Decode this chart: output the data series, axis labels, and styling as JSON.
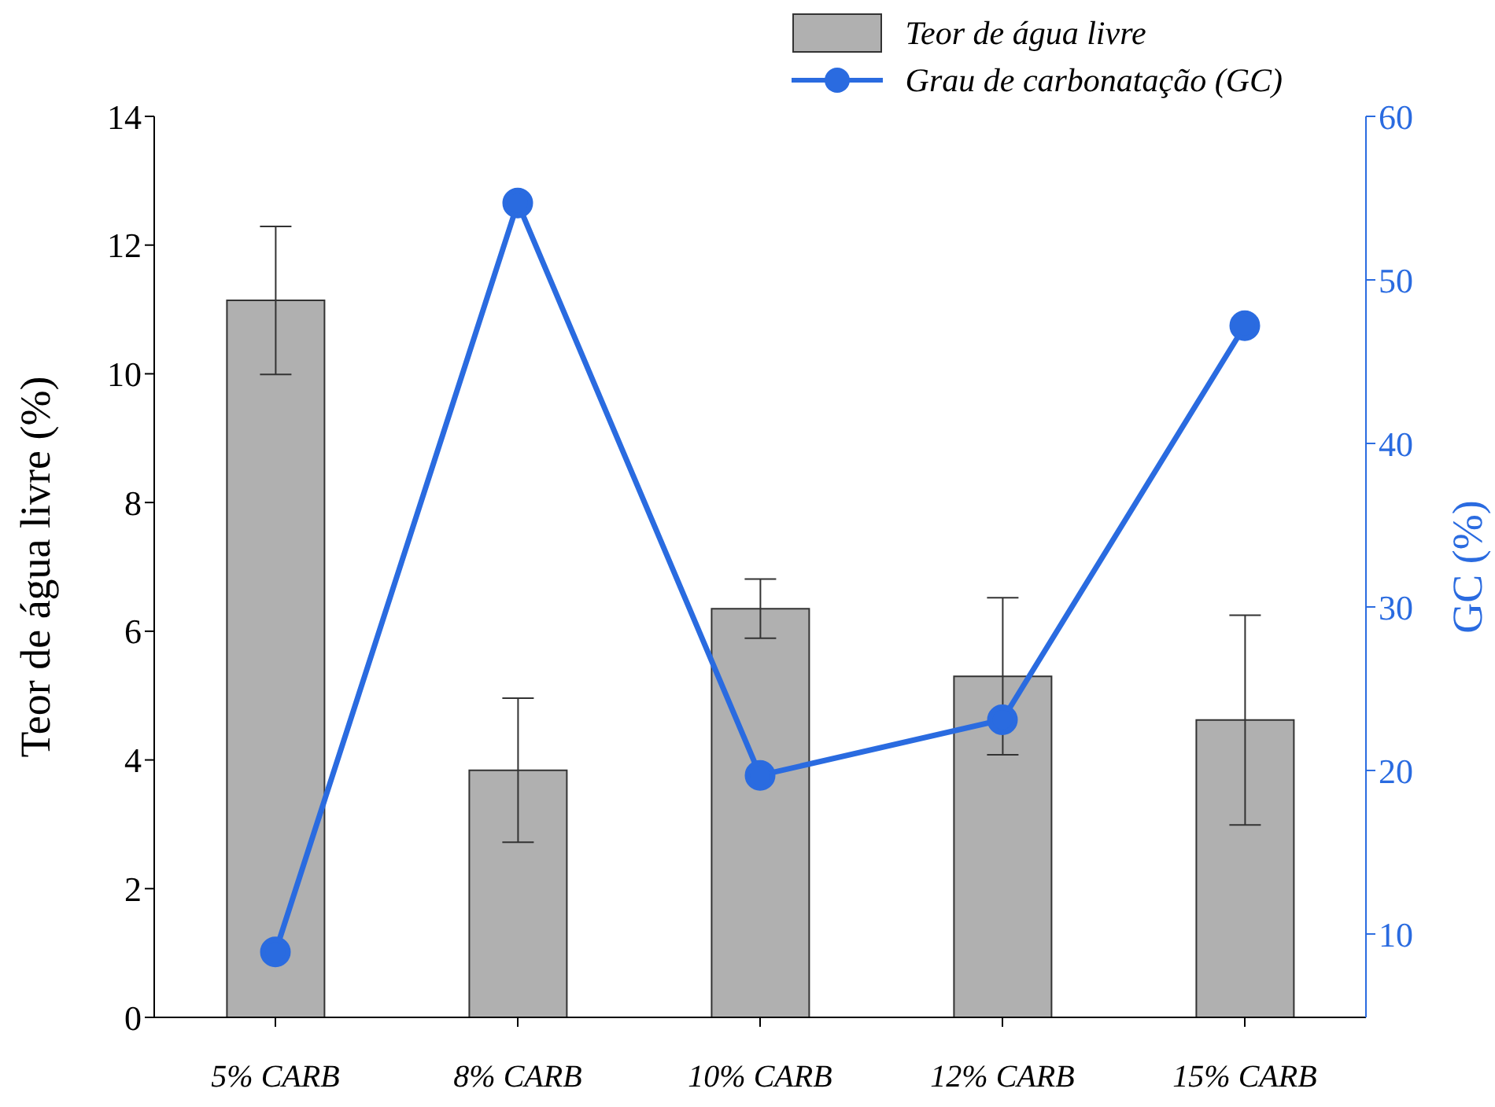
{
  "chart_data": {
    "type": "bar",
    "categories": [
      "5% CARB",
      "8% CARB",
      "10% CARB",
      "12% CARB",
      "15% CARB"
    ],
    "ylabel": "Teor de água livre (%)",
    "y2label": "GC (%)",
    "series": [
      {
        "name": "Teor de água livre",
        "color": "#b0b0b0",
        "values": [
          11.14,
          3.84,
          6.35,
          5.3,
          4.62
        ],
        "errors": [
          1.15,
          1.12,
          0.46,
          1.22,
          1.63
        ]
      },
      {
        "name": "Grau de carbonatação (GC)",
        "type": "line",
        "axis": "y2",
        "color": "#2a6be0",
        "values": [
          8.9,
          54.7,
          19.7,
          23.1,
          47.2
        ]
      }
    ],
    "ylim": [
      0,
      14
    ],
    "yticks": [
      0,
      2,
      4,
      6,
      8,
      10,
      12,
      14
    ],
    "y2lim": [
      4.9,
      60
    ],
    "y2ticks": [
      10,
      20,
      30,
      40,
      50,
      60
    ],
    "marker": "circle",
    "line_style": "solid",
    "legend": "top right",
    "grid": false
  }
}
